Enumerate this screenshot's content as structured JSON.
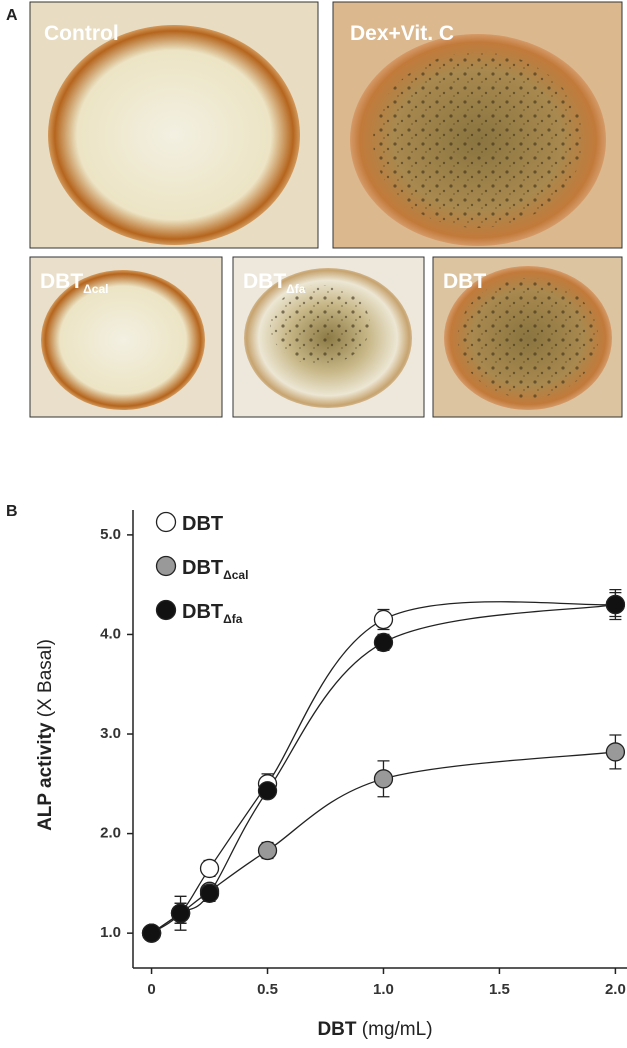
{
  "panel_a": {
    "label": "A",
    "photos": [
      {
        "text": "Control"
      },
      {
        "text": "Dex+Vit. C"
      },
      {
        "text": "DBT",
        "subscript": "Δcal"
      },
      {
        "text": "DBT",
        "subscript": "Δfa"
      },
      {
        "text": "DBT"
      }
    ]
  },
  "chart_data": {
    "type": "scatter",
    "panel_label": "B",
    "xlabel": "DBT",
    "xlabel_unit": "(mg/mL)",
    "ylabel": "ALP activity",
    "ylabel_unit": "(X Basal)",
    "x": [
      0,
      0.125,
      0.25,
      0.5,
      1,
      2
    ],
    "xlim": [
      -0.08,
      2.05
    ],
    "xticks": [
      0,
      0.5,
      {
        "value": 1,
        "label": "1.0"
      },
      {
        "value": 1.5,
        "label": "1.5"
      },
      {
        "value": 2,
        "label": "2.0"
      }
    ],
    "ylim": [
      0.65,
      5.25
    ],
    "yticks": [
      {
        "value": 1,
        "label": "1.0"
      },
      {
        "value": 2,
        "label": "2.0"
      },
      {
        "value": 3,
        "label": "3.0"
      },
      {
        "value": 4,
        "label": "4.0"
      },
      {
        "value": 5,
        "label": "5.0"
      }
    ],
    "series": [
      {
        "name": "DBT",
        "color": "#ffffff",
        "values": [
          1.0,
          1.2,
          1.65,
          2.5,
          4.15,
          4.3
        ],
        "errors": [
          0.04,
          0.1,
          0.08,
          0.1,
          0.1,
          0.12
        ]
      },
      {
        "name": "DBT",
        "subscript": "Δcal",
        "color": "#999999",
        "values": [
          1.0,
          1.2,
          1.42,
          1.83,
          2.55,
          2.82
        ],
        "errors": [
          0.04,
          0.1,
          0.06,
          0.08,
          0.18,
          0.17
        ]
      },
      {
        "name": "DBT",
        "subscript": "Δfa",
        "color": "#111111",
        "values": [
          1.0,
          1.2,
          1.4,
          2.43,
          3.92,
          4.3
        ],
        "errors": [
          0.04,
          0.17,
          0.08,
          0.07,
          0.08,
          0.15
        ]
      }
    ]
  }
}
